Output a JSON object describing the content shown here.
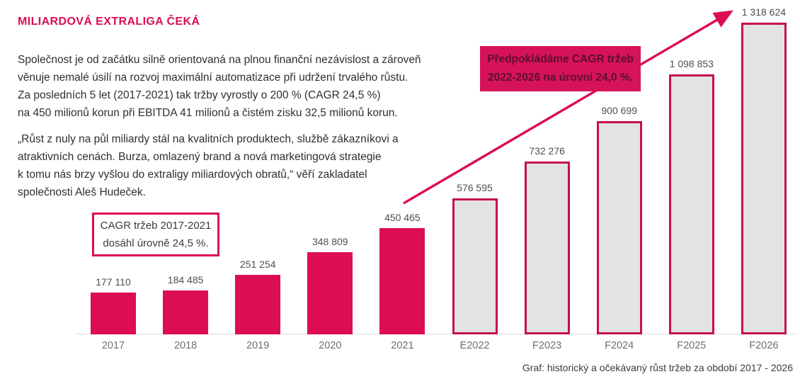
{
  "title": "MILIARDOVÁ EXTRALIGA ČEKÁ",
  "paragraphs": {
    "p1": "Společnost je od začátku silně orientovaná na plnou finanční nezávislost a zároveň\nvěnuje nemalé úsilí na rozvoj maximální automatizace při udržení trvalého růstu.\nZa posledních 5 let (2017-2021) tak tržby vyrostly o 200 % (CAGR 24,5 %)\nna 450 milionů korun při EBITDA 41 milionů a čistém zisku 32,5 milionů korun.",
    "p2": "„Růst z nuly na půl miliardy stál na kvalitních produktech, službě zákazníkovi a\natraktivních cenách. Burza, omlazený brand a nová marketingová strategie\nk tomu nás brzy vyšlou do extraligy miliardových obratů,“ věří zakladatel\nspolečnosti Aleš Hudeček."
  },
  "callouts": {
    "historical": "CAGR tržeb 2017-2021\ndosáhl úrovně 24,5 %.",
    "forecast": "Předpokládáme CAGR tržeb\n2022-2026 na úrovni 24,0 %."
  },
  "caption": "Graf: historický a očekávaný růst tržeb za období 2017 - 2026",
  "colors": {
    "accent": "#DC0D53",
    "box_bg": "#D6135A",
    "box_text": "#5C0E2F",
    "forecast_fill": "#E4E3E3",
    "forecast_border": "#C60E4E",
    "body_text": "#2F2F2F",
    "value_label": "#4E4E4E",
    "cat_label": "#6F6F6F",
    "callout_text": "#3A3A3A",
    "caption_text": "#3B3B3B",
    "axis": "#DBDBDB"
  },
  "chart_data": {
    "type": "bar",
    "title": "",
    "xlabel": "",
    "ylabel": "",
    "grid": false,
    "legend": null,
    "ylim": [
      0,
      1400000
    ],
    "categories": [
      "2017",
      "2018",
      "2019",
      "2020",
      "2021",
      "E2022",
      "F2023",
      "F2024",
      "F2025",
      "F2026"
    ],
    "values": [
      177110,
      184485,
      251254,
      348809,
      450465,
      576595,
      732276,
      900699,
      1098853,
      1318624
    ],
    "value_labels": [
      "177 110",
      "184 485",
      "251 254",
      "348 809",
      "450 465",
      "576 595",
      "732 276",
      "900 699",
      "1 098 853",
      "1 318 624"
    ],
    "segments": [
      "historical",
      "historical",
      "historical",
      "historical",
      "historical",
      "forecast",
      "forecast",
      "forecast",
      "forecast",
      "forecast"
    ],
    "annotations": [
      "CAGR tržeb 2017-2021 dosáhl úrovně 24,5 %.",
      "Předpokládáme CAGR tržeb 2022-2026 na úrovni 24,0 %."
    ],
    "caption": "Graf: historický a očekávaný růst tržeb za období 2017 - 2026"
  }
}
